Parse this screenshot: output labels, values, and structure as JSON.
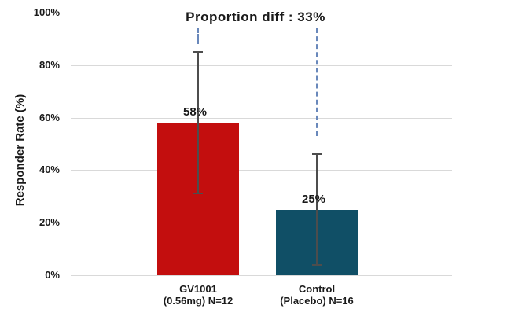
{
  "chart_data": {
    "type": "bar",
    "title": "Proportion diff : 33%",
    "ylabel": "Responder Rate (%)",
    "xlabel": "",
    "ylim": [
      0,
      100
    ],
    "yticks": [
      0,
      20,
      40,
      60,
      80,
      100
    ],
    "ytick_labels": [
      "0%",
      "20%",
      "40%",
      "60%",
      "80%",
      "100%"
    ],
    "grid": true,
    "categories": [
      {
        "line1": "GV1001",
        "line2": "(0.56mg) N=12"
      },
      {
        "line1": "Control",
        "line2": "(Placebo) N=16"
      }
    ],
    "values": [
      58,
      25
    ],
    "value_labels": [
      "58%",
      "25%"
    ],
    "error_bars": [
      {
        "low": 31,
        "high": 85
      },
      {
        "low": 4,
        "high": 46
      }
    ],
    "bar_colors": [
      "#c30e0e",
      "#104f66"
    ],
    "annotation": {
      "label": "Proportion diff : 33%",
      "dash_color": "#6988bb",
      "dashed_segments": [
        {
          "top_value": 94,
          "bottom_value": 88
        },
        {
          "top_value": 94,
          "bottom_value": 53
        }
      ]
    },
    "colors": {
      "gridline": "#d9d9d9",
      "error_bar": "#4d4d4d",
      "text": "#1a1a1a",
      "background": "#ffffff"
    }
  }
}
